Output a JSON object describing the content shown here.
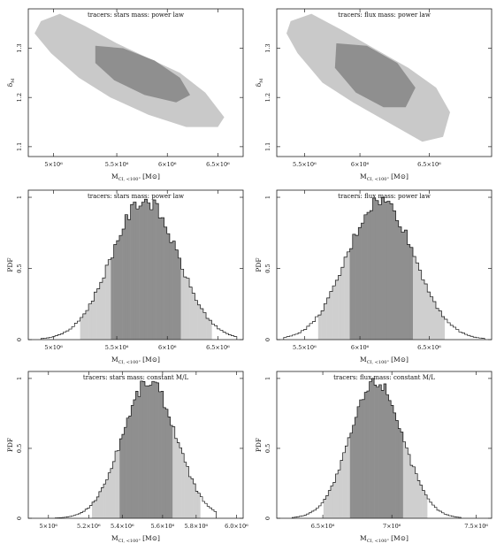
{
  "chart_data": [
    {
      "type": "contour",
      "title": "tracers: stars    mass: power law",
      "xlabel": "M",
      "xlabel_sub": "CI, <100\"",
      "xlabel_unit": "[M⊙]",
      "ylabel": "δ",
      "ylabel_sub": "M",
      "xlim": [
        4.8,
        6.5
      ],
      "ylim": [
        1.08,
        1.38
      ],
      "xticks": [
        {
          "v": 5.0,
          "t": "5×10⁶"
        },
        {
          "v": 5.5,
          "t": "5.5×10⁶"
        },
        {
          "v": 5.9,
          "t": "6×10⁶"
        },
        {
          "v": 6.3,
          "t": "6.5×10⁶"
        }
      ],
      "yticks": [
        {
          "v": 1.1,
          "t": "1.1"
        },
        {
          "v": 1.2,
          "t": "1.2"
        },
        {
          "v": 1.3,
          "t": "1.3"
        }
      ],
      "outer": [
        [
          4.9,
          1.355
        ],
        [
          5.05,
          1.37
        ],
        [
          5.25,
          1.345
        ],
        [
          5.5,
          1.31
        ],
        [
          5.75,
          1.28
        ],
        [
          6.0,
          1.25
        ],
        [
          6.2,
          1.21
        ],
        [
          6.35,
          1.16
        ],
        [
          6.3,
          1.14
        ],
        [
          6.05,
          1.14
        ],
        [
          5.75,
          1.165
        ],
        [
          5.45,
          1.2
        ],
        [
          5.2,
          1.24
        ],
        [
          4.98,
          1.29
        ],
        [
          4.85,
          1.33
        ]
      ],
      "inner": [
        [
          5.33,
          1.305
        ],
        [
          5.55,
          1.3
        ],
        [
          5.8,
          1.275
        ],
        [
          6.0,
          1.24
        ],
        [
          6.08,
          1.205
        ],
        [
          5.97,
          1.19
        ],
        [
          5.72,
          1.205
        ],
        [
          5.48,
          1.235
        ],
        [
          5.33,
          1.27
        ]
      ]
    },
    {
      "type": "contour",
      "title": "tracers: flux    mass: power law",
      "xlabel": "M",
      "xlabel_sub": "CI, <100\"",
      "xlabel_unit": "[M⊙]",
      "ylabel": "δ",
      "ylabel_sub": "M",
      "xlim": [
        5.35,
        6.9
      ],
      "ylim": [
        1.08,
        1.38
      ],
      "xticks": [
        {
          "v": 5.55,
          "t": "5.5×10⁶"
        },
        {
          "v": 5.95,
          "t": "6×10⁶"
        },
        {
          "v": 6.45,
          "t": "6.5×10⁶"
        }
      ],
      "yticks": [
        {
          "v": 1.1,
          "t": "1.1"
        },
        {
          "v": 1.2,
          "t": "1.2"
        },
        {
          "v": 1.3,
          "t": "1.3"
        }
      ],
      "outer": [
        [
          5.45,
          1.355
        ],
        [
          5.6,
          1.37
        ],
        [
          5.8,
          1.34
        ],
        [
          6.05,
          1.3
        ],
        [
          6.3,
          1.26
        ],
        [
          6.5,
          1.22
        ],
        [
          6.6,
          1.17
        ],
        [
          6.55,
          1.12
        ],
        [
          6.4,
          1.11
        ],
        [
          6.15,
          1.15
        ],
        [
          5.9,
          1.19
        ],
        [
          5.68,
          1.23
        ],
        [
          5.5,
          1.29
        ],
        [
          5.42,
          1.33
        ]
      ],
      "inner": [
        [
          5.78,
          1.31
        ],
        [
          6.0,
          1.305
        ],
        [
          6.22,
          1.27
        ],
        [
          6.35,
          1.22
        ],
        [
          6.28,
          1.18
        ],
        [
          6.12,
          1.18
        ],
        [
          5.92,
          1.21
        ],
        [
          5.77,
          1.26
        ]
      ]
    },
    {
      "type": "histogram",
      "title": "tracers: stars    mass: power law",
      "xlabel": "M",
      "xlabel_sub": "CI, <100\"",
      "xlabel_unit": "[M⊙]",
      "ylabel": "PDF",
      "xlim": [
        4.8,
        6.5
      ],
      "ylim": [
        0,
        1.05
      ],
      "xticks": [
        {
          "v": 5.0,
          "t": "5×10⁶"
        },
        {
          "v": 5.5,
          "t": "5.5×10⁶"
        },
        {
          "v": 5.9,
          "t": "6×10⁶"
        },
        {
          "v": 6.3,
          "t": "6.5×10⁶"
        }
      ],
      "yticks": [
        {
          "v": 0,
          "t": "0"
        },
        {
          "v": 0.5,
          "t": "0.5"
        },
        {
          "v": 1,
          "t": "1"
        }
      ],
      "center": 5.72,
      "sigma": 0.26,
      "band_outer": [
        5.2,
        6.25
      ],
      "band_inner": [
        5.45,
        6.0
      ],
      "extent": [
        4.9,
        6.45
      ]
    },
    {
      "type": "histogram",
      "title": "tracers: flux    mass: power law",
      "xlabel": "M",
      "xlabel_sub": "CI, <100\"",
      "xlabel_unit": "[M⊙]",
      "ylabel": "PDF",
      "xlim": [
        5.35,
        6.9
      ],
      "ylim": [
        0,
        1.05
      ],
      "xticks": [
        {
          "v": 5.55,
          "t": "5.5×10⁶"
        },
        {
          "v": 5.95,
          "t": "6×10⁶"
        },
        {
          "v": 6.45,
          "t": "6.5×10⁶"
        }
      ],
      "yticks": [
        {
          "v": 0,
          "t": "0"
        },
        {
          "v": 0.5,
          "t": "0.5"
        },
        {
          "v": 1,
          "t": "1"
        }
      ],
      "center": 6.1,
      "sigma": 0.24,
      "band_outer": [
        5.65,
        6.55
      ],
      "band_inner": [
        5.88,
        6.33
      ],
      "extent": [
        5.4,
        6.85
      ]
    },
    {
      "type": "histogram",
      "title": "tracers: stars    mass: constant M/L",
      "xlabel": "M",
      "xlabel_sub": "CI, <100\"",
      "xlabel_unit": "[M⊙]",
      "ylabel": "PDF",
      "xlim": [
        4.7,
        6.3
      ],
      "ylim": [
        0,
        1.05
      ],
      "xticks": [
        {
          "v": 4.85,
          "t": "5×10⁶"
        },
        {
          "v": 5.15,
          "t": "5.2×10⁶"
        },
        {
          "v": 5.4,
          "t": "5.4×10⁶"
        },
        {
          "v": 5.7,
          "t": "5.6×10⁶"
        },
        {
          "v": 5.95,
          "t": "5.8×10⁶"
        },
        {
          "v": 6.25,
          "t": "6.0×10⁶"
        }
      ],
      "yticks": [
        {
          "v": 0,
          "t": "0"
        },
        {
          "v": 0.5,
          "t": "0.5"
        },
        {
          "v": 1,
          "t": "1"
        }
      ],
      "center": 5.6,
      "sigma": 0.2,
      "band_outer": [
        5.18,
        5.98
      ],
      "band_inner": [
        5.38,
        5.78
      ],
      "extent": [
        4.9,
        6.1
      ]
    },
    {
      "type": "histogram",
      "title": "tracers: flux    mass: constant M/L",
      "xlabel": "M",
      "xlabel_sub": "CI, <100\"",
      "xlabel_unit": "[M⊙]",
      "ylabel": "PDF",
      "xlim": [
        6.2,
        7.6
      ],
      "ylim": [
        0,
        1.05
      ],
      "xticks": [
        {
          "v": 6.5,
          "t": "6.5×10⁶"
        },
        {
          "v": 6.95,
          "t": "7×10⁶"
        },
        {
          "v": 7.5,
          "t": "7.5×10⁶"
        }
      ],
      "yticks": [
        {
          "v": 0,
          "t": "0"
        },
        {
          "v": 0.5,
          "t": "0.5"
        },
        {
          "v": 1,
          "t": "1"
        }
      ],
      "center": 6.85,
      "sigma": 0.17,
      "band_outer": [
        6.5,
        7.18
      ],
      "band_inner": [
        6.68,
        7.02
      ],
      "extent": [
        6.3,
        7.4
      ]
    }
  ]
}
